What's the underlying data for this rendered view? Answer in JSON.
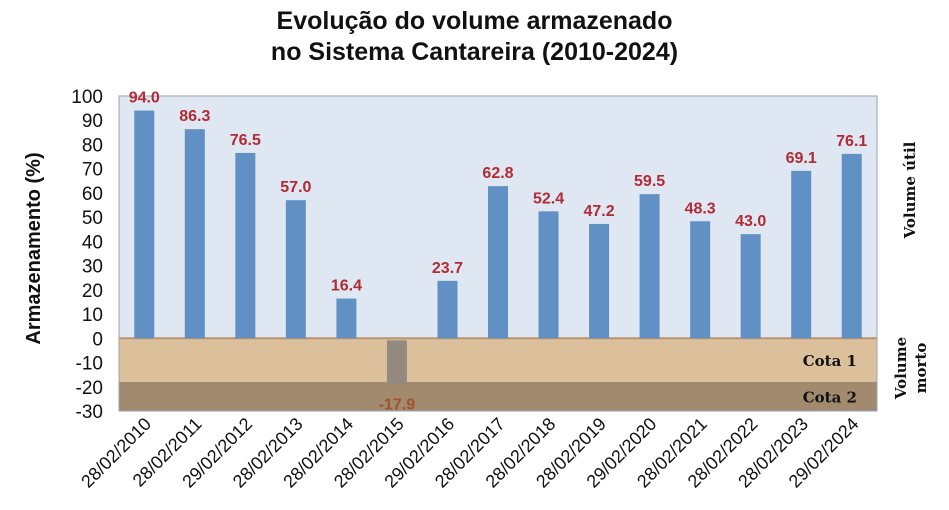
{
  "chart_data": {
    "type": "bar",
    "title_line1": "Evolução do volume armazenado",
    "title_line2": "no Sistema Cantareira (2010-2024)",
    "ylabel": "Armazenamento (%)",
    "xlabel": "",
    "ylim": [
      -30,
      100
    ],
    "yticks": [
      100,
      90,
      80,
      70,
      60,
      50,
      40,
      30,
      20,
      10,
      0,
      -10,
      -20,
      -30
    ],
    "categories": [
      "28/02/2010",
      "28/02/2011",
      "29/02/2012",
      "28/02/2013",
      "28/02/2014",
      "28/02/2015",
      "29/02/2016",
      "28/02/2017",
      "28/02/2018",
      "28/02/2019",
      "29/02/2020",
      "28/02/2021",
      "28/02/2022",
      "28/02/2023",
      "29/02/2024"
    ],
    "values": [
      94.0,
      86.3,
      76.5,
      57.0,
      16.4,
      -17.9,
      23.7,
      62.8,
      52.4,
      47.2,
      59.5,
      48.3,
      43.0,
      69.1,
      76.1
    ],
    "value_labels": [
      "94.0",
      "86.3",
      "76.5",
      "57.0",
      "16.4",
      "-17.9",
      "23.7",
      "62.8",
      "52.4",
      "47.2",
      "59.5",
      "48.3",
      "43.0",
      "69.1",
      "76.1"
    ],
    "bands": [
      {
        "label": "Cota 1",
        "from": 0,
        "to": -18,
        "color": "#dcc09c"
      },
      {
        "label": "Cota 2",
        "from": -18,
        "to": -30,
        "color": "#a28a6e"
      }
    ],
    "side_labels": {
      "upper": "Volume útil",
      "lower_line1": "Volume",
      "lower_line2": "morto"
    },
    "colors": {
      "bar": "#6190c5",
      "negative_bar": "#948a80",
      "plot_bg": "#dfe7f2",
      "value_label": "#b22a34",
      "negative_label": "#a0522d"
    },
    "grid": false
  }
}
